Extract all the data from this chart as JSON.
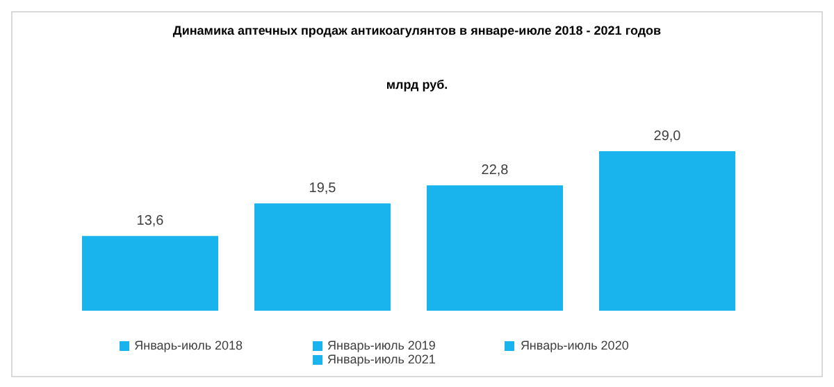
{
  "chart_data": {
    "type": "bar",
    "title": "Динамика аптечных продаж антикоагулянтов в январе-июле 2018 - 2021 годов",
    "subtitle": "млрд руб.",
    "categories": [
      null
    ],
    "series": [
      {
        "name": "Январь-июль 2018",
        "color": "#19b4ee",
        "values": [
          13.6
        ],
        "value_labels": [
          "13,6"
        ]
      },
      {
        "name": "Январь-июль 2019",
        "color": "#19b4ee",
        "values": [
          19.5
        ],
        "value_labels": [
          "19,5"
        ]
      },
      {
        "name": "Январь-июль 2020",
        "color": "#19b4ee",
        "values": [
          22.8
        ],
        "value_labels": [
          "22,8"
        ]
      },
      {
        "name": "Январь-июль 2021",
        "color": "#19b4ee",
        "values": [
          29.0
        ],
        "value_labels": [
          "29,0"
        ]
      }
    ],
    "legend": "bottom"
  }
}
